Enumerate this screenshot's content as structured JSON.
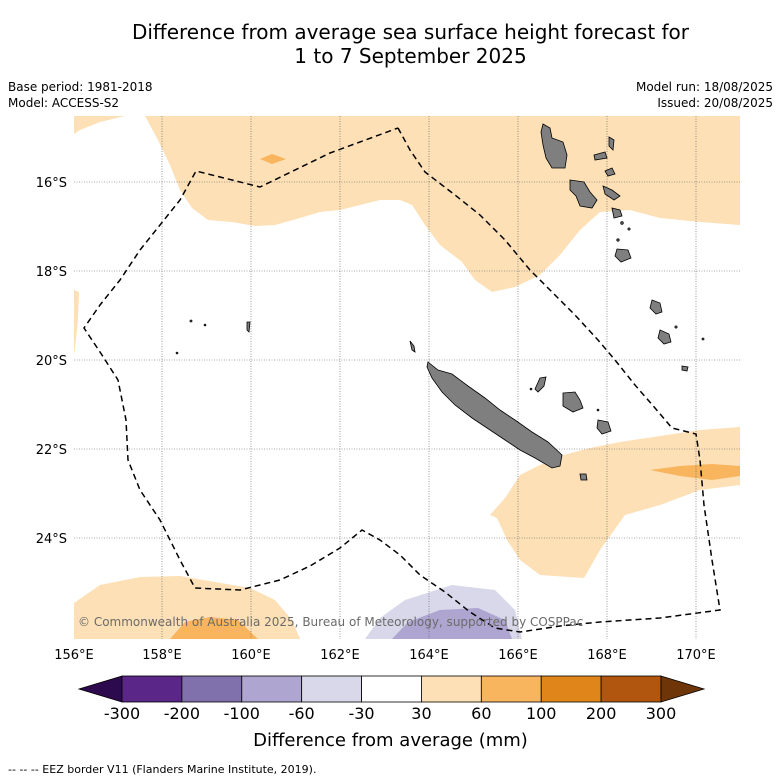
{
  "title_line1": "Difference from average sea surface height forecast for",
  "title_line2": "1 to 7 September 2025",
  "base_period": "Base period: 1981-2018",
  "model": "Model: ACCESS-S2",
  "model_run": "Model run: 18/08/2025",
  "issued": "Issued: 20/08/2025",
  "copyright": "© Commonwealth of Australia 2025, Bureau of Meteorology, supported by COSPPac",
  "lat_labels": [
    "16°S",
    "18°S",
    "20°S",
    "22°S",
    "24°S"
  ],
  "lon_labels": [
    "156°E",
    "158°E",
    "160°E",
    "162°E",
    "164°E",
    "166°E",
    "168°E",
    "170°E"
  ],
  "colorbar": {
    "ticks": [
      "-300",
      "-200",
      "-100",
      "-60",
      "-30",
      "30",
      "60",
      "100",
      "200",
      "300"
    ],
    "colors": [
      "#2d0a4e",
      "#5a2687",
      "#8071ad",
      "#aea6d0",
      "#d8d8ea",
      "#ffffff",
      "#fde0b6",
      "#f9b45e",
      "#e08519",
      "#b1560f",
      "#6e3509"
    ],
    "label": "Difference from average (mm)"
  },
  "legend_footnote": "--  --  -- EEZ border V11 (Flanders Marine Institute, 2019).",
  "map_colors": {
    "land": "#7f7f7f",
    "pos_30_60": "#fde0b6",
    "pos_60_100": "#f9b45e",
    "neg_30_60": "#d8d8ea",
    "neg_60_100": "#aea6d0",
    "grid": "#555555"
  }
}
